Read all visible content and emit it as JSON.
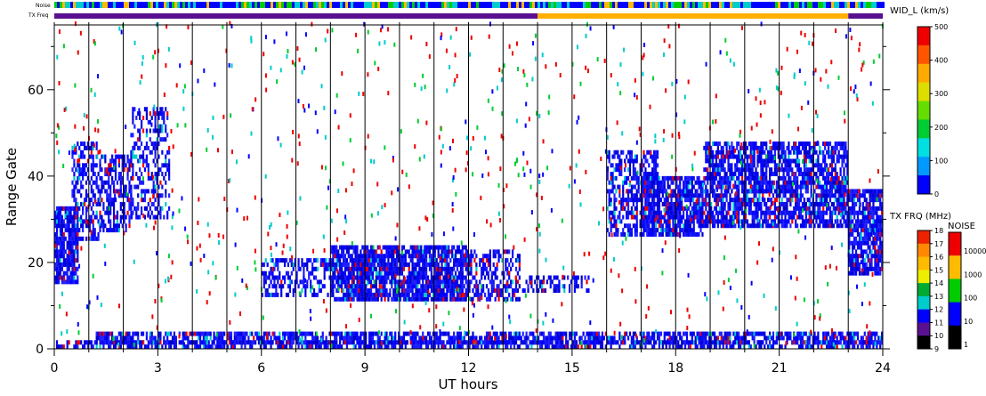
{
  "chart_data": {
    "type": "heatmap",
    "xlabel": "UT hours",
    "ylabel": "Range Gate",
    "xlim": [
      0,
      24
    ],
    "ylim": [
      0,
      75
    ],
    "x_ticks": [
      0,
      3,
      6,
      9,
      12,
      15,
      18,
      21,
      24
    ],
    "y_ticks": [
      0,
      20,
      40,
      60
    ],
    "hour_lines": [
      1,
      2,
      3,
      4,
      5,
      6,
      7,
      8,
      9,
      10,
      11,
      12,
      13,
      14,
      15,
      16,
      17,
      18,
      19,
      20,
      21,
      22,
      23
    ],
    "strips": {
      "noise_label": "Noise",
      "txfreq_label": "TX Freq",
      "txfreq_segments": [
        {
          "start": 0,
          "end": 14,
          "color": "#5a1090"
        },
        {
          "start": 14,
          "end": 23,
          "color": "#ffb000"
        },
        {
          "start": 23,
          "end": 24,
          "color": "#5a1090"
        }
      ]
    },
    "colorbar_width": {
      "title": "WID_L (km/s)",
      "range": [
        0,
        500
      ],
      "tick_labels": [
        "0",
        "100",
        "200",
        "300",
        "400",
        "500"
      ],
      "colors": [
        "#0000ff",
        "#0099ff",
        "#00e0e0",
        "#00cc33",
        "#66dd00",
        "#dddd00",
        "#ffaa00",
        "#ff5500",
        "#ee0000"
      ]
    },
    "colorbar_txfreq": {
      "title": "TX FRQ (MHz)",
      "tick_labels": [
        "9",
        "10",
        "11",
        "12",
        "13",
        "14",
        "15",
        "16",
        "17",
        "18"
      ],
      "colors": [
        "#000000",
        "#5a1090",
        "#0000ff",
        "#00cccc",
        "#00aa33",
        "#eeee00",
        "#ffbb00",
        "#ff8800",
        "#ee2200"
      ]
    },
    "colorbar_noise": {
      "title": "NOISE",
      "tick_labels": [
        "1",
        "10",
        "100",
        "1000",
        "10000"
      ],
      "colors": [
        "#000000",
        "#0000ff",
        "#00cc00",
        "#ffbb00",
        "#ee0000"
      ]
    },
    "regions": [
      {
        "x0": 0.0,
        "x1": 0.7,
        "y0": 15,
        "y1": 33,
        "density": 0.85
      },
      {
        "x0": 0.5,
        "x1": 1.3,
        "y0": 25,
        "y1": 48,
        "density": 0.5
      },
      {
        "x0": 1.3,
        "x1": 2.2,
        "y0": 27,
        "y1": 45,
        "density": 0.55
      },
      {
        "x0": 2.2,
        "x1": 3.3,
        "y0": 30,
        "y1": 56,
        "density": 0.4
      },
      {
        "x0": 0.0,
        "x1": 24.0,
        "y0": 0,
        "y1": 2,
        "density": 0.6
      },
      {
        "x0": 1.2,
        "x1": 24.0,
        "y0": 1,
        "y1": 4,
        "density": 0.7
      },
      {
        "x0": 6.0,
        "x1": 8.0,
        "y0": 12,
        "y1": 21,
        "density": 0.5
      },
      {
        "x0": 8.0,
        "x1": 12.0,
        "y0": 11,
        "y1": 24,
        "density": 0.85
      },
      {
        "x0": 12.0,
        "x1": 13.5,
        "y0": 11,
        "y1": 23,
        "density": 0.55
      },
      {
        "x0": 13.5,
        "x1": 15.5,
        "y0": 13,
        "y1": 17,
        "density": 0.45
      },
      {
        "x0": 16.0,
        "x1": 17.5,
        "y0": 26,
        "y1": 46,
        "density": 0.55
      },
      {
        "x0": 17.0,
        "x1": 18.8,
        "y0": 26,
        "y1": 40,
        "density": 0.8
      },
      {
        "x0": 18.8,
        "x1": 23.0,
        "y0": 28,
        "y1": 48,
        "density": 0.75
      },
      {
        "x0": 23.0,
        "x1": 24.0,
        "y0": 17,
        "y1": 37,
        "density": 0.8
      }
    ]
  }
}
